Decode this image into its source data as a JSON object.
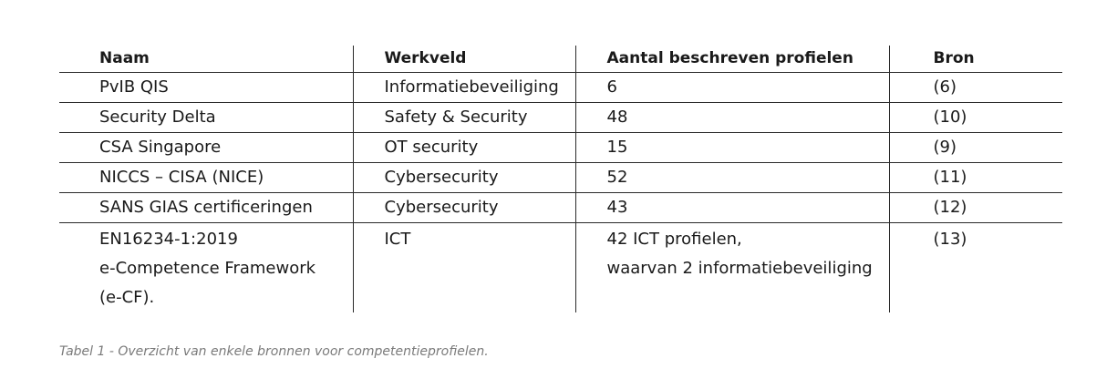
{
  "table": {
    "headers": [
      "Naam",
      "Werkveld",
      "Aantal beschreven profielen",
      "Bron"
    ],
    "rows": [
      {
        "naam": [
          "PvIB QIS"
        ],
        "werkveld": [
          "Informatiebeveiliging"
        ],
        "aantal": [
          "6"
        ],
        "bron": [
          "(6)"
        ]
      },
      {
        "naam": [
          "Security Delta"
        ],
        "werkveld": [
          "Safety & Security"
        ],
        "aantal": [
          "48"
        ],
        "bron": [
          "(10)"
        ]
      },
      {
        "naam": [
          "CSA Singapore"
        ],
        "werkveld": [
          "OT security"
        ],
        "aantal": [
          "15"
        ],
        "bron": [
          "(9)"
        ]
      },
      {
        "naam": [
          "NICCS – CISA (NICE)"
        ],
        "werkveld": [
          "Cybersecurity"
        ],
        "aantal": [
          "52"
        ],
        "bron": [
          "(11)"
        ]
      },
      {
        "naam": [
          "SANS GIAS certificeringen"
        ],
        "werkveld": [
          "Cybersecurity"
        ],
        "aantal": [
          "43"
        ],
        "bron": [
          "(12)"
        ]
      },
      {
        "naam": [
          "EN16234-1:2019",
          "e-Competence Framework",
          "(e-CF)."
        ],
        "werkveld": [
          "ICT"
        ],
        "aantal": [
          "42 ICT profielen,",
          "waarvan 2 informatiebeveiliging"
        ],
        "bron": [
          "(13)"
        ]
      }
    ]
  },
  "caption": "Tabel 1 - Overzicht van enkele bronnen voor competentieprofielen."
}
